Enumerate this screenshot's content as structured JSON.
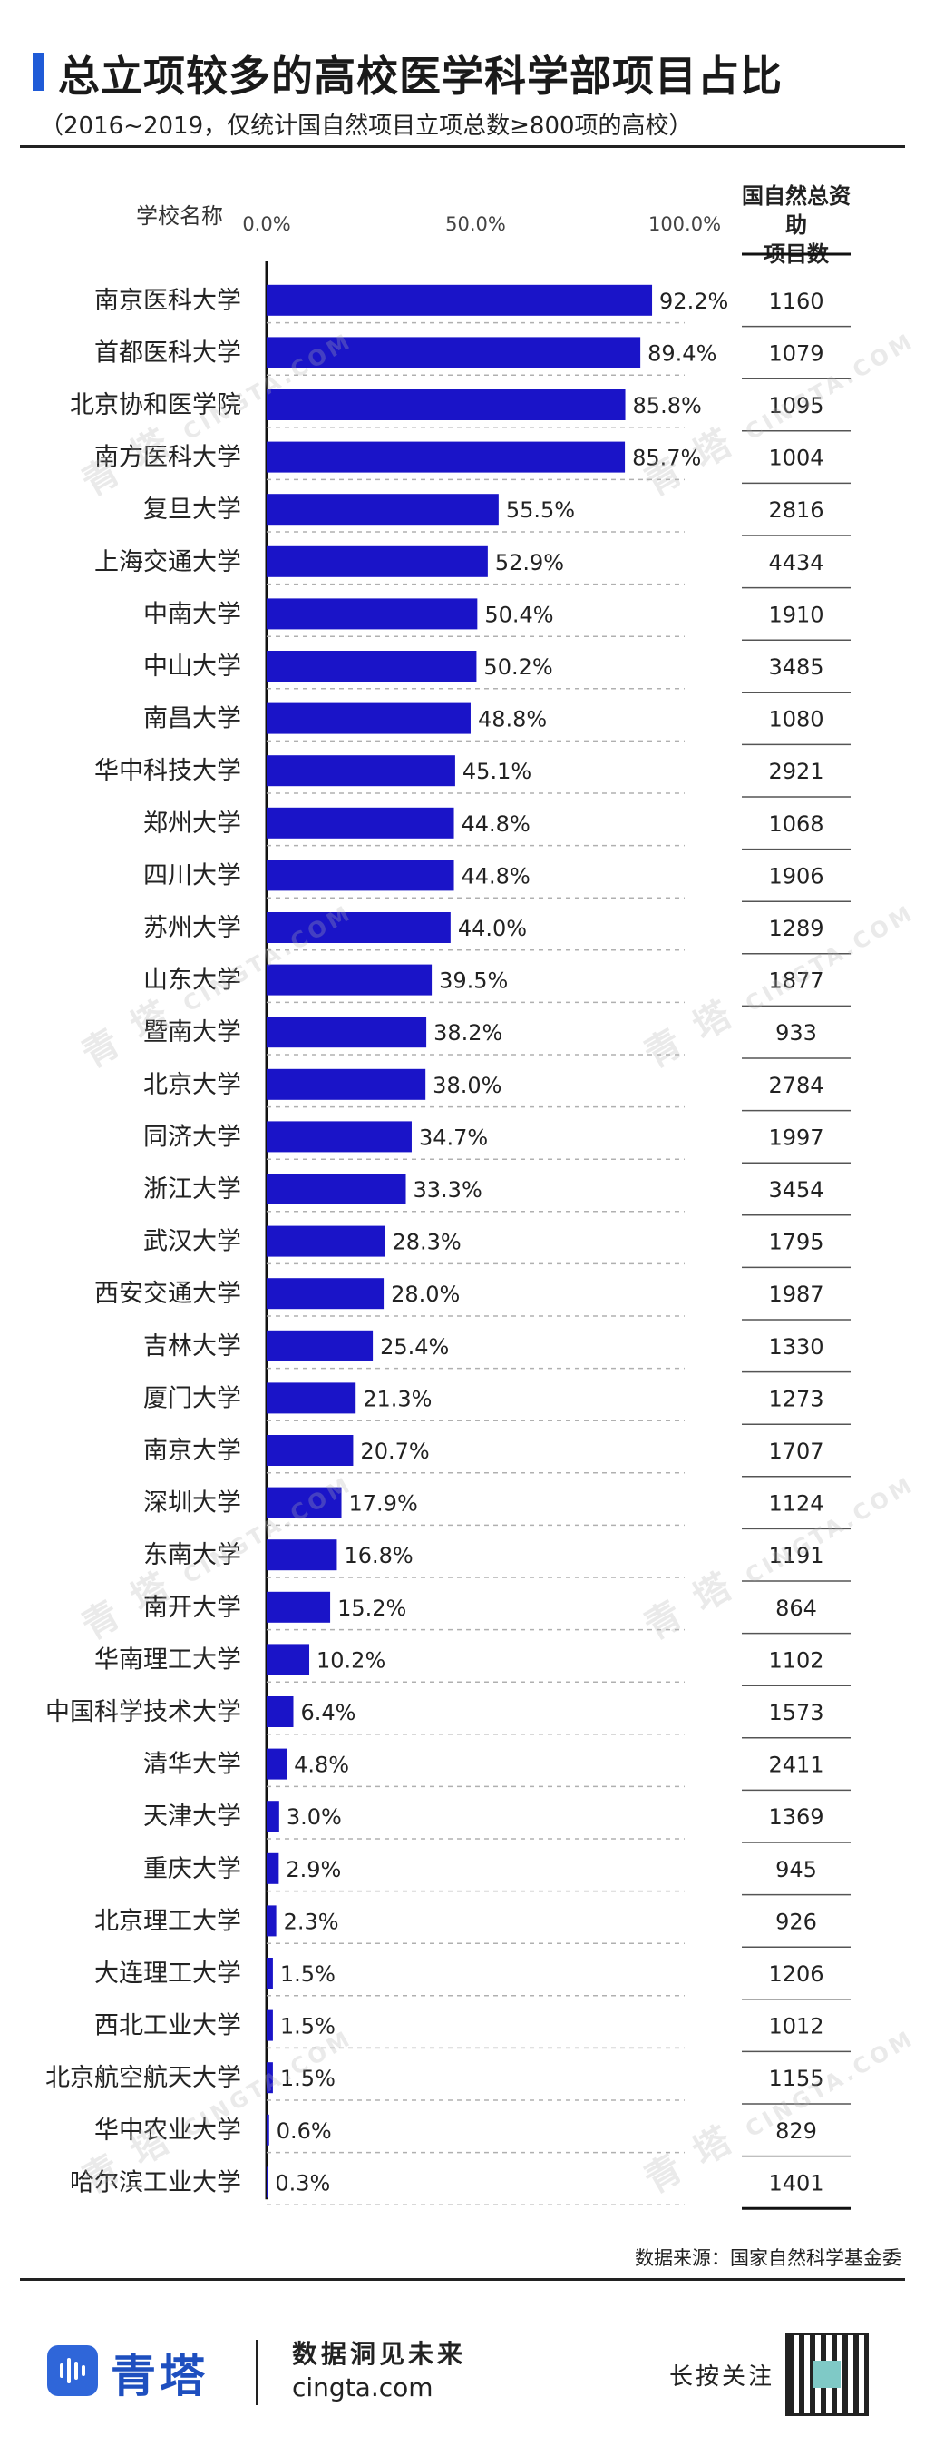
{
  "header": {
    "title": "总立项较多的高校医学科学部项目占比",
    "subtitle": "（2016~2019，仅统计国自然项目立项总数≥800项的高校）"
  },
  "columns": {
    "school": "学校名称",
    "count_line1": "国自然总资助",
    "count_line2": "项目数"
  },
  "colors": {
    "bar": "#1a14c8",
    "accent": "#1f5bd7",
    "brand": "#2f66d9"
  },
  "chart_data": {
    "type": "bar",
    "orientation": "horizontal",
    "xlim": [
      0,
      100
    ],
    "x_ticks": [
      "0.0%",
      "50.0%",
      "100.0%"
    ],
    "categories": [
      "南京医科大学",
      "首都医科大学",
      "北京协和医学院",
      "南方医科大学",
      "复旦大学",
      "上海交通大学",
      "中南大学",
      "中山大学",
      "南昌大学",
      "华中科技大学",
      "郑州大学",
      "四川大学",
      "苏州大学",
      "山东大学",
      "暨南大学",
      "北京大学",
      "同济大学",
      "浙江大学",
      "武汉大学",
      "西安交通大学",
      "吉林大学",
      "厦门大学",
      "南京大学",
      "深圳大学",
      "东南大学",
      "南开大学",
      "华南理工大学",
      "中国科学技术大学",
      "清华大学",
      "天津大学",
      "重庆大学",
      "北京理工大学",
      "大连理工大学",
      "西北工业大学",
      "北京航空航天大学",
      "华中农业大学",
      "哈尔滨工业大学"
    ],
    "values": [
      92.2,
      89.4,
      85.8,
      85.7,
      55.5,
      52.9,
      50.4,
      50.2,
      48.8,
      45.1,
      44.8,
      44.8,
      44.0,
      39.5,
      38.2,
      38.0,
      34.7,
      33.3,
      28.3,
      28.0,
      25.4,
      21.3,
      20.7,
      17.9,
      16.8,
      15.2,
      10.2,
      6.4,
      4.8,
      3.0,
      2.9,
      2.3,
      1.5,
      1.5,
      1.5,
      0.6,
      0.3
    ],
    "value_labels": [
      "92.2%",
      "89.4%",
      "85.8%",
      "85.7%",
      "55.5%",
      "52.9%",
      "50.4%",
      "50.2%",
      "48.8%",
      "45.1%",
      "44.8%",
      "44.8%",
      "44.0%",
      "39.5%",
      "38.2%",
      "38.0%",
      "34.7%",
      "33.3%",
      "28.3%",
      "28.0%",
      "25.4%",
      "21.3%",
      "20.7%",
      "17.9%",
      "16.8%",
      "15.2%",
      "10.2%",
      "6.4%",
      "4.8%",
      "3.0%",
      "2.9%",
      "2.3%",
      "1.5%",
      "1.5%",
      "1.5%",
      "0.6%",
      "0.3%"
    ],
    "project_counts": [
      "1160",
      "1079",
      "1095",
      "1004",
      "2816",
      "4434",
      "1910",
      "3485",
      "1080",
      "2921",
      "1068",
      "1906",
      "1289",
      "1877",
      "933",
      "2784",
      "1997",
      "3454",
      "1795",
      "1987",
      "1330",
      "1273",
      "1707",
      "1124",
      "1191",
      "864",
      "1102",
      "1573",
      "2411",
      "1369",
      "945",
      "926",
      "1206",
      "1012",
      "1155",
      "829",
      "1401"
    ]
  },
  "footer": {
    "source": "数据来源：国家自然科学基金委",
    "brand": "青塔",
    "slogan": "数据洞见未来",
    "site": "cingta.com",
    "follow": "长按关注",
    "watermark_text": "青 塔",
    "watermark_url": "CINGTA.COM"
  }
}
